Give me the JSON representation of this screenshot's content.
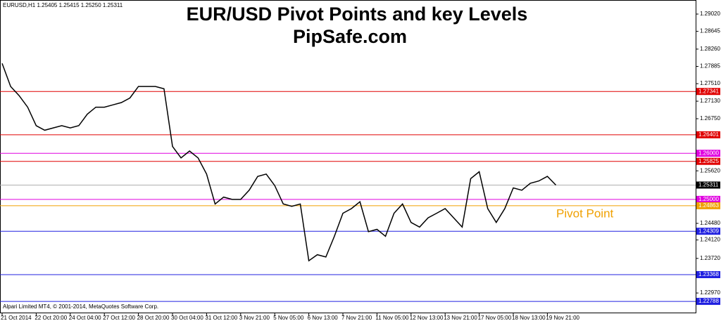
{
  "chart_data": {
    "type": "line",
    "title": "EUR/USD Pivot Points and key Levels",
    "subtitle": "PipSafe.com",
    "symbol_info": "EURUSD,H1  1.25405 1.25415 1.25250 1.25311",
    "footer": "Alpari Limited MT4, © 2001-2014, MetaQuotes Software Corp.",
    "annotation": "Pivot Point",
    "categories": [
      "21 Oct 2014",
      null,
      null,
      null,
      "22 Oct 20:00",
      null,
      null,
      null,
      "24 Oct 04:00",
      null,
      null,
      null,
      "27 Oct 12:00",
      null,
      null,
      null,
      "28 Oct 20:00",
      null,
      null,
      null,
      "30 Oct 04:00",
      null,
      null,
      null,
      "31 Oct 12:00",
      null,
      null,
      null,
      "3 Nov 21:00",
      null,
      null,
      null,
      "5 Nov 05:00",
      null,
      null,
      null,
      "6 Nov 13:00",
      null,
      null,
      null,
      "7 Nov 21:00",
      null,
      null,
      null,
      "11 Nov 05:00",
      null,
      null,
      null,
      "12 Nov 13:00",
      null,
      null,
      null,
      "13 Nov 21:00",
      null,
      null,
      null,
      "17 Nov 05:00",
      null,
      null,
      null,
      "18 Nov 13:00",
      null,
      null,
      null,
      "19 Nov 21:00",
      null
    ],
    "series": [
      {
        "color": "#000000",
        "values": [
          1.2795,
          1.2745,
          1.2725,
          1.27,
          1.266,
          1.265,
          1.2655,
          1.266,
          1.2655,
          1.266,
          1.2685,
          1.27,
          1.27,
          1.2705,
          1.271,
          1.272,
          1.2745,
          1.2745,
          1.2745,
          1.274,
          1.2615,
          1.259,
          1.2605,
          1.259,
          1.2555,
          1.249,
          1.2505,
          1.25,
          1.25,
          1.252,
          1.255,
          1.2555,
          1.253,
          1.249,
          1.2485,
          1.249,
          1.2367,
          1.238,
          1.2375,
          1.242,
          1.247,
          1.248,
          1.2495,
          1.243,
          1.2435,
          1.242,
          1.247,
          1.249,
          1.245,
          1.244,
          1.246,
          1.247,
          1.248,
          1.246,
          1.244,
          1.2545,
          1.256,
          1.248,
          1.245,
          1.248,
          1.2525,
          1.252,
          1.2535,
          1.254,
          1.255,
          1.2531
        ]
      }
    ],
    "ylim": [
      1.2253,
      1.29325
    ],
    "yticks": [
      {
        "value": 1.2902,
        "label": "1.29020"
      },
      {
        "value": 1.28645,
        "label": "1.28645"
      },
      {
        "value": 1.2826,
        "label": "1.28260"
      },
      {
        "value": 1.27885,
        "label": "1.27885"
      },
      {
        "value": 1.2751,
        "label": "1.27510"
      },
      {
        "value": 1.2713,
        "label": "1.27130"
      },
      {
        "value": 1.2675,
        "label": "1.26750"
      },
      {
        "value": 1.2562,
        "label": "1.25620"
      },
      {
        "value": 1.2448,
        "label": "1.24480"
      },
      {
        "value": 1.2412,
        "label": "1.24120"
      },
      {
        "value": 1.2372,
        "label": "1.23720"
      },
      {
        "value": 1.2297,
        "label": "1.22970"
      }
    ],
    "levels": [
      {
        "value": 1.27341,
        "color": "#e00000"
      },
      {
        "value": 1.26401,
        "color": "#e00000"
      },
      {
        "value": 1.26,
        "label": "1.26000",
        "color": "#e000e0"
      },
      {
        "value": 1.25825,
        "color": "#e00000"
      },
      {
        "value": 1.25311,
        "color": "#b0b0b0"
      },
      {
        "value": 1.25,
        "label": "1.25000",
        "color": "#e000e0"
      },
      {
        "value": 1.24863,
        "color": "#f0a000"
      },
      {
        "value": 1.24309,
        "color": "#2020e0"
      },
      {
        "value": 1.23368,
        "color": "#2020e0"
      },
      {
        "value": 1.22788,
        "color": "#2020e0"
      }
    ],
    "annotation_color": "#f0a000"
  }
}
